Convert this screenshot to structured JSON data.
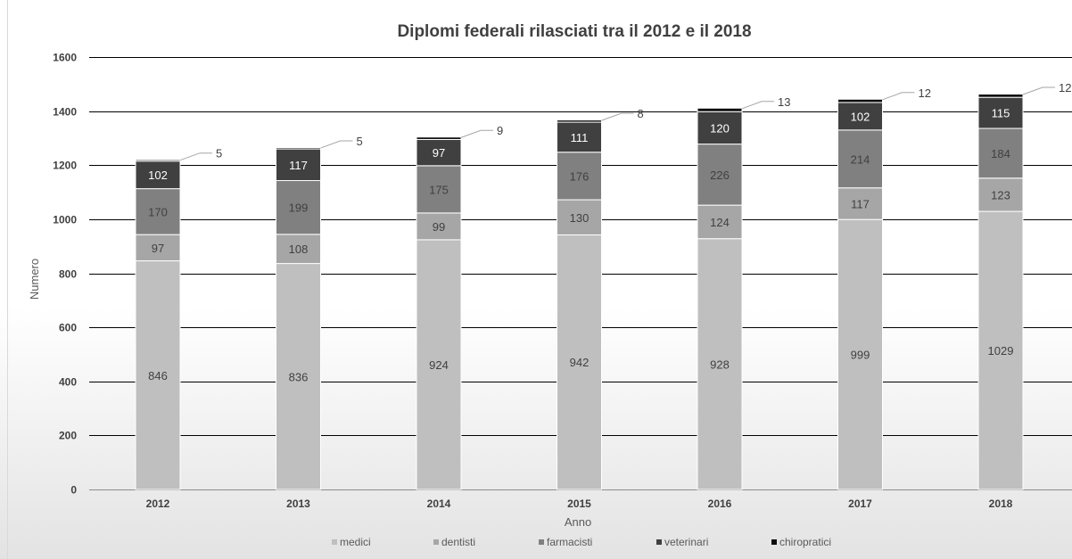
{
  "chart_data": {
    "type": "bar",
    "stacked": true,
    "title": "Diplomi federali rilasciati tra il 2012 e il 2018",
    "xlabel": "Anno",
    "ylabel": "Numero",
    "ylim": [
      0,
      1600
    ],
    "yticks": [
      0,
      200,
      400,
      600,
      800,
      1000,
      1200,
      1400,
      1600
    ],
    "grid": true,
    "legend_position": "bottom",
    "categories": [
      "2012",
      "2013",
      "2014",
      "2015",
      "2016",
      "2017",
      "2018"
    ],
    "series": [
      {
        "name": "medici",
        "color": "#bfbfbf",
        "label_color": "#404040",
        "values": [
          846,
          836,
          924,
          942,
          928,
          999,
          1029
        ]
      },
      {
        "name": "dentisti",
        "color": "#a6a6a6",
        "label_color": "#404040",
        "values": [
          97,
          108,
          99,
          130,
          124,
          117,
          123
        ]
      },
      {
        "name": "farmacisti",
        "color": "#808080",
        "label_color": "#404040",
        "values": [
          170,
          199,
          175,
          176,
          226,
          214,
          184
        ]
      },
      {
        "name": "veterinari",
        "color": "#404040",
        "label_color": "#ffffff",
        "values": [
          102,
          117,
          97,
          111,
          120,
          102,
          115
        ]
      },
      {
        "name": "chiropratici",
        "color": "#0d0d0d",
        "label_color": "#404040",
        "values": [
          5,
          5,
          9,
          8,
          13,
          12,
          12
        ]
      }
    ]
  }
}
